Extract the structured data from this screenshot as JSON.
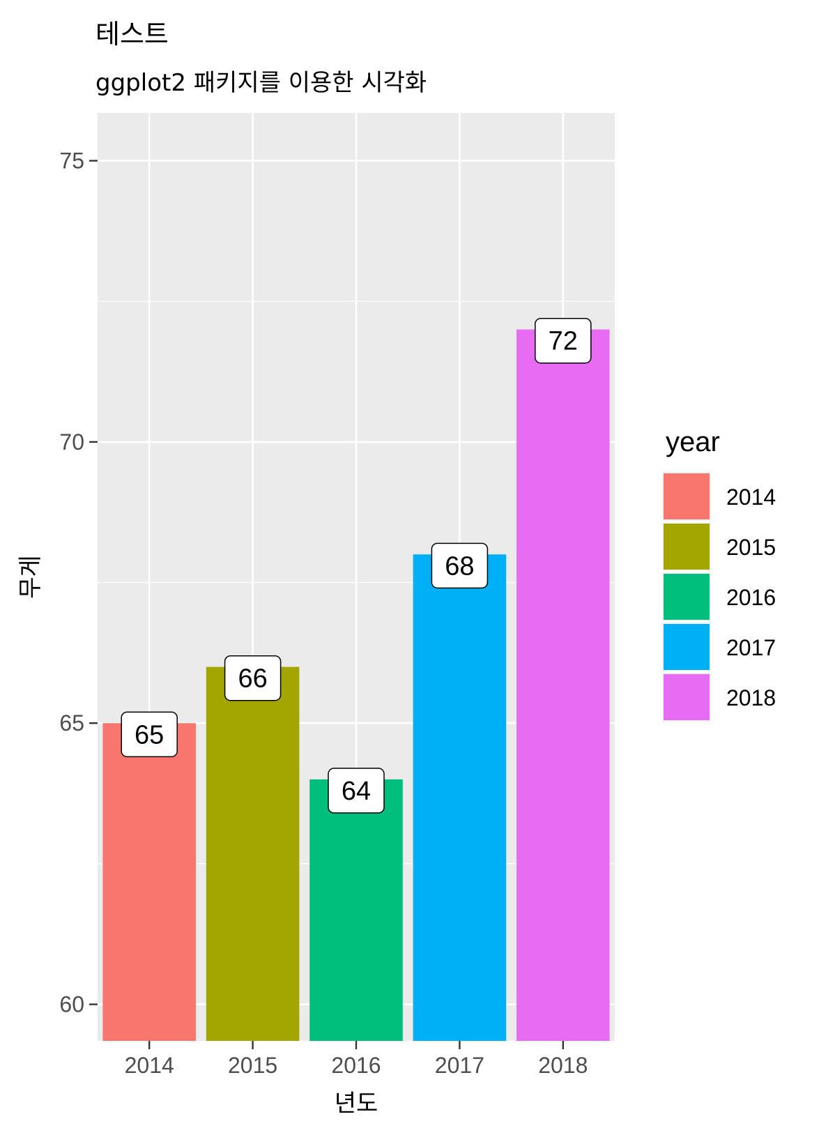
{
  "chart_data": {
    "type": "bar",
    "title": "테스트",
    "subtitle": "ggplot2 패키지를 이용한 시각화",
    "xlabel": "년도",
    "ylabel": "무게",
    "categories": [
      "2014",
      "2015",
      "2016",
      "2017",
      "2018"
    ],
    "values": [
      65,
      66,
      64,
      68,
      72
    ],
    "data_labels": [
      "65",
      "66",
      "64",
      "68",
      "72"
    ],
    "ylim": [
      59.35,
      75.85
    ],
    "y_ticks": [
      60,
      65,
      70,
      75
    ],
    "y_tick_labels": [
      "60",
      "65",
      "70",
      "75"
    ],
    "colors": [
      "#F8766D",
      "#A3A500",
      "#00BF7D",
      "#00B0F6",
      "#E76BF3"
    ],
    "panel_background": "#EBEBEB",
    "grid": true,
    "legend": {
      "title": "year",
      "position": "right",
      "entries": [
        "2014",
        "2015",
        "2016",
        "2017",
        "2018"
      ]
    }
  }
}
